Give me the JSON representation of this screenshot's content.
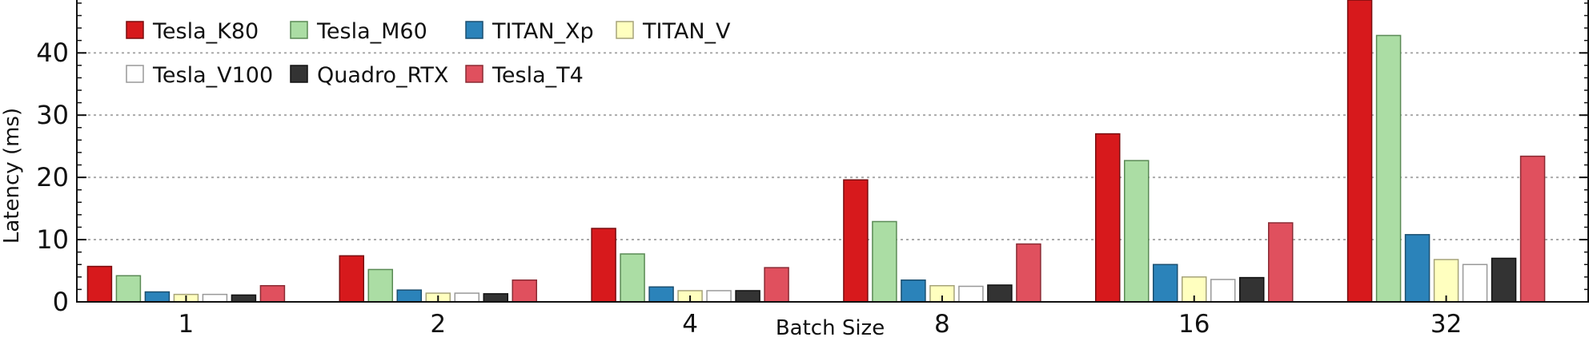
{
  "chart_data": {
    "type": "bar",
    "title": "",
    "xlabel": "Batch Size",
    "ylabel": "Latency (ms)",
    "ylim": [
      0,
      48.5
    ],
    "yticks": [
      0,
      10,
      20,
      30,
      40
    ],
    "grid": "horizontal-dotted",
    "legend": {
      "placement": "top-left",
      "columns": 4
    },
    "categories": [
      "1",
      "2",
      "4",
      "8",
      "16",
      "32"
    ],
    "series": [
      {
        "name": "Tesla_K80",
        "color": "#d7191c",
        "stroke": "#7a0d0f",
        "values": [
          5.7,
          7.4,
          11.8,
          19.6,
          27.0,
          49.0
        ]
      },
      {
        "name": "Tesla_M60",
        "color": "#abdda4",
        "stroke": "#5a8a55",
        "values": [
          4.2,
          5.2,
          7.7,
          12.9,
          22.7,
          42.8
        ]
      },
      {
        "name": "TITAN_Xp",
        "color": "#2b83ba",
        "stroke": "#1b4f70",
        "values": [
          1.6,
          1.9,
          2.4,
          3.5,
          6.0,
          10.8
        ]
      },
      {
        "name": "TITAN_V",
        "color": "#ffffbf",
        "stroke": "#a6a37a",
        "values": [
          1.2,
          1.4,
          1.8,
          2.6,
          4.0,
          6.8
        ]
      },
      {
        "name": "Tesla_V100",
        "color": "#ffffff",
        "stroke": "#999999",
        "values": [
          1.2,
          1.4,
          1.8,
          2.5,
          3.6,
          6.0
        ]
      },
      {
        "name": "Quadro_RTX",
        "color": "#333333",
        "stroke": "#111111",
        "values": [
          1.1,
          1.3,
          1.8,
          2.7,
          3.9,
          7.0
        ]
      },
      {
        "name": "Tesla_T4",
        "color": "#e0505e",
        "stroke": "#8a2b34",
        "values": [
          2.6,
          3.5,
          5.5,
          9.3,
          12.7,
          23.4
        ]
      }
    ]
  }
}
